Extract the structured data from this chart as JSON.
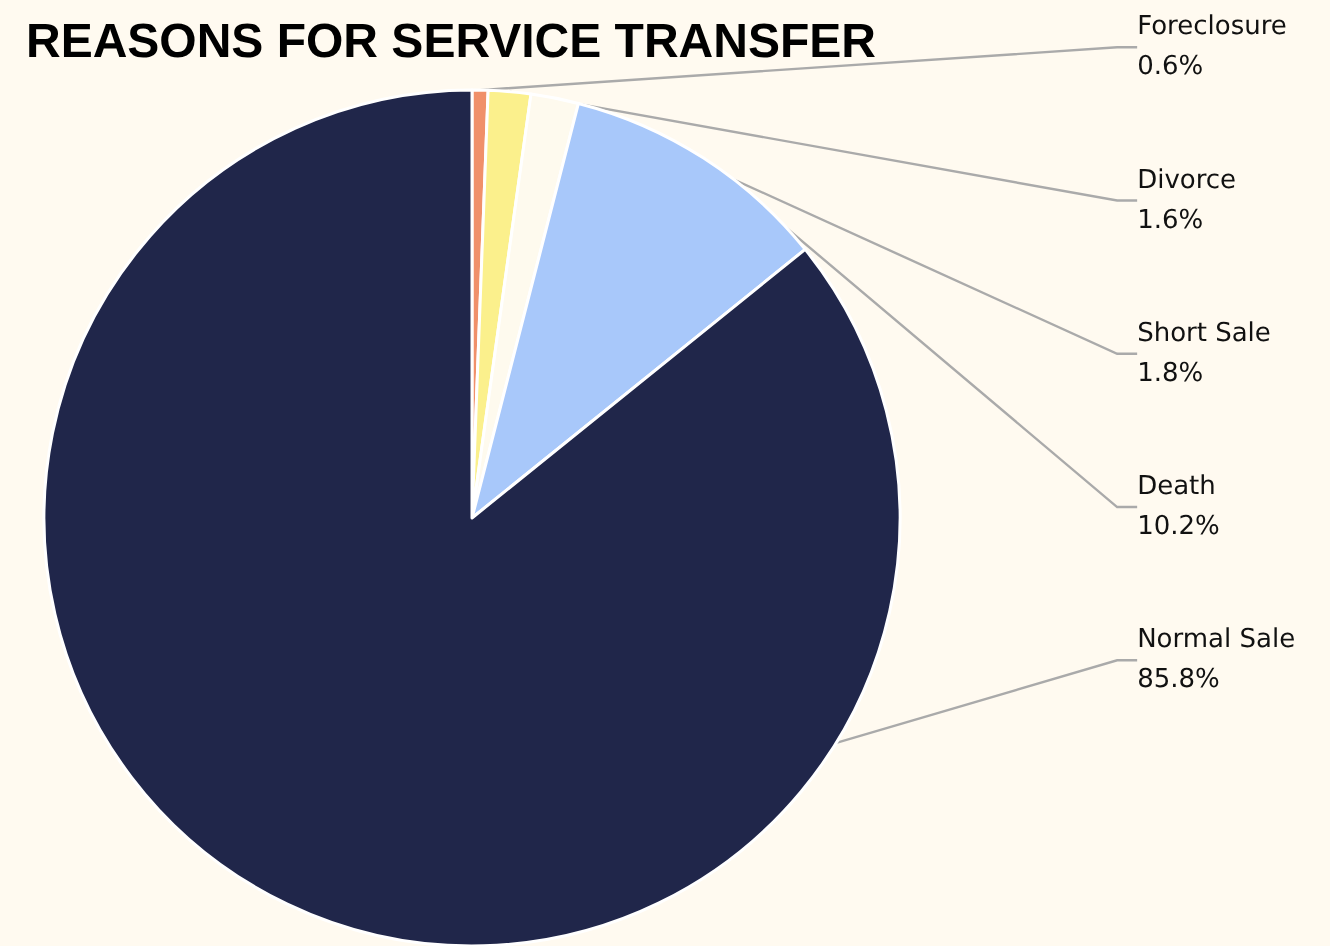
{
  "chart_data": {
    "type": "pie",
    "title": "REASONS FOR SERVICE TRANSFER",
    "categories": [
      "Foreclosure",
      "Divorce",
      "Short Sale",
      "Death",
      "Normal Sale"
    ],
    "values": [
      0.6,
      1.6,
      1.8,
      10.2,
      85.8
    ],
    "colors": [
      "#f0906a",
      "#fbf08c",
      "#fefaee",
      "#a8c8fa",
      "#20264a"
    ],
    "value_labels": [
      "0.6%",
      "1.6%",
      "1.8%",
      "10.2%",
      "85.8%"
    ],
    "legend": false
  }
}
